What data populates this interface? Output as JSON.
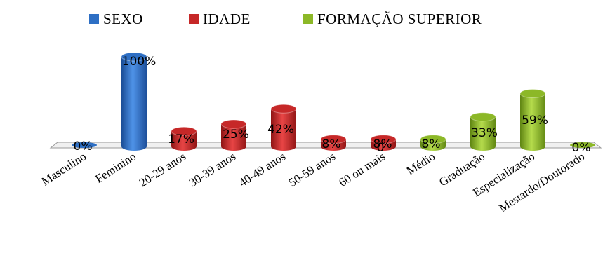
{
  "chart_data": {
    "type": "bar",
    "title": "",
    "xlabel": "",
    "ylabel": "",
    "ylim": [
      0,
      100
    ],
    "grid": false,
    "legend_position": "top-center",
    "categories": [
      "Masculino",
      "Feminino",
      "20-29 anos",
      "30-39 anos",
      "40-49 anos",
      "50-59 anos",
      "60 ou mais",
      "Médio",
      "Graduação",
      "Especialização",
      "Mestardo/Doutorado"
    ],
    "series": [
      {
        "name": "SEXO",
        "color": "#2e6fc4",
        "values": [
          0,
          100,
          null,
          null,
          null,
          null,
          null,
          null,
          null,
          null,
          null
        ],
        "labels": [
          "0%",
          "100%",
          null,
          null,
          null,
          null,
          null,
          null,
          null,
          null,
          null
        ]
      },
      {
        "name": "IDADE",
        "color": "#c62828",
        "values": [
          null,
          null,
          17,
          25,
          42,
          8,
          8,
          null,
          null,
          null,
          null
        ],
        "labels": [
          null,
          null,
          "17%",
          "25%",
          "42%",
          "8%",
          "8%",
          null,
          null,
          null,
          null
        ]
      },
      {
        "name": "FORMAÇÃO SUPERIOR",
        "color": "#8cb827",
        "values": [
          null,
          null,
          null,
          null,
          null,
          null,
          null,
          8,
          33,
          59,
          0
        ],
        "labels": [
          null,
          null,
          null,
          null,
          null,
          null,
          null,
          "8%",
          "33%",
          "59%",
          "0%"
        ]
      }
    ],
    "extra_labels": [
      {
        "category_index": 6,
        "text": "0"
      }
    ]
  }
}
